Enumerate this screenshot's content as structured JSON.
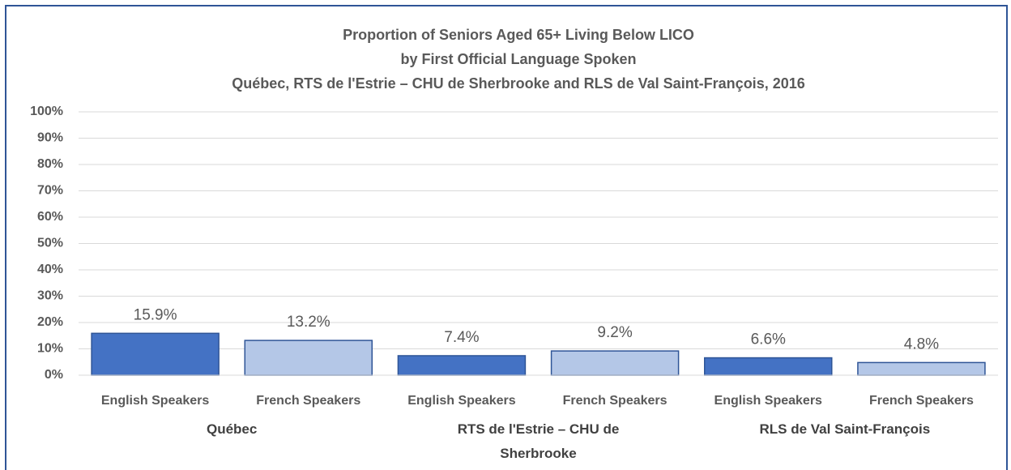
{
  "chart_data": {
    "type": "bar",
    "title": [
      "Proportion of Seniors Aged 65+ Living Below LICO",
      "by First Official Language Spoken",
      "Québec, RTS de l'Estrie – CHU de Sherbrooke and RLS de Val Saint-François, 2016"
    ],
    "categories": [
      "English Speakers",
      "French Speakers",
      "English Speakers",
      "French Speakers",
      "English Speakers",
      "French Speakers"
    ],
    "groups": [
      "Québec",
      "RTS de l'Estrie – CHU de Sherbrooke",
      "RLS de Val Saint-François"
    ],
    "values": [
      15.9,
      13.2,
      7.4,
      9.2,
      6.6,
      4.8
    ],
    "value_labels": [
      "15.9%",
      "13.2%",
      "7.4%",
      "9.2%",
      "6.6%",
      "4.8%"
    ],
    "colors": [
      "#4472c4",
      "#b4c7e7",
      "#4472c4",
      "#b4c7e7",
      "#4472c4",
      "#b4c7e7"
    ],
    "edge_color": "#2f5597",
    "ylim": [
      0,
      100
    ],
    "yticks": [
      {
        "value": 0,
        "label": "0%"
      },
      {
        "value": 10,
        "label": "10%"
      },
      {
        "value": 20,
        "label": "20%"
      },
      {
        "value": 30,
        "label": "30%"
      },
      {
        "value": 40,
        "label": "40%"
      },
      {
        "value": 50,
        "label": "50%"
      },
      {
        "value": 60,
        "label": "60%"
      },
      {
        "value": 70,
        "label": "70%"
      },
      {
        "value": 80,
        "label": "80%"
      },
      {
        "value": 90,
        "label": "90%"
      },
      {
        "value": 100,
        "label": "100%"
      }
    ],
    "grid": true
  }
}
